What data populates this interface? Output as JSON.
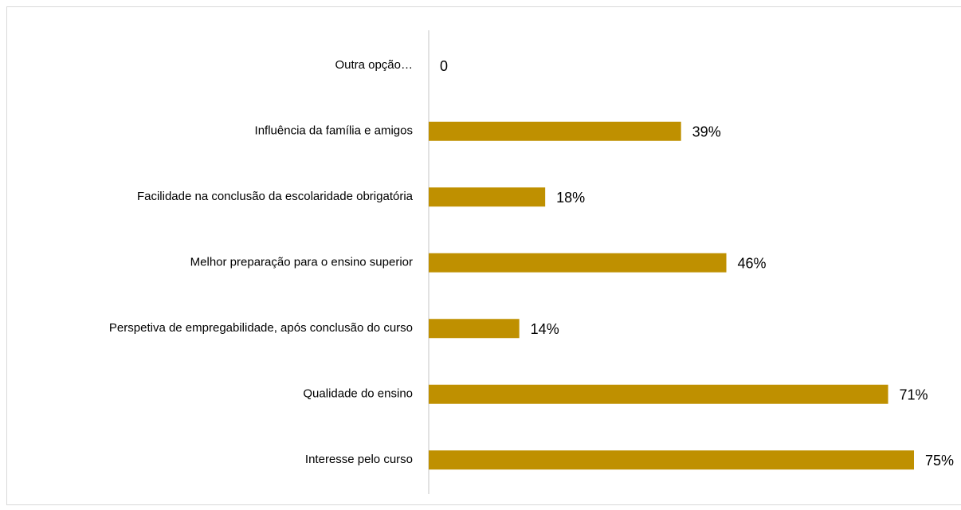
{
  "chart_data": {
    "type": "bar",
    "orientation": "horizontal",
    "categories": [
      "Outra opção…",
      "Influência da família e amigos",
      "Facilidade na conclusão da escolaridade obrigatória",
      "Melhor preparação para o ensino superior",
      "Perspetiva de empregabilidade, após conclusão do curso",
      "Qualidade do ensino",
      "Interesse pelo curso"
    ],
    "values": [
      0,
      39,
      18,
      46,
      14,
      71,
      75
    ],
    "value_labels": [
      "0",
      "39%",
      "18%",
      "46%",
      "14%",
      "71%",
      "75%"
    ],
    "color": "#bf9000"
  }
}
